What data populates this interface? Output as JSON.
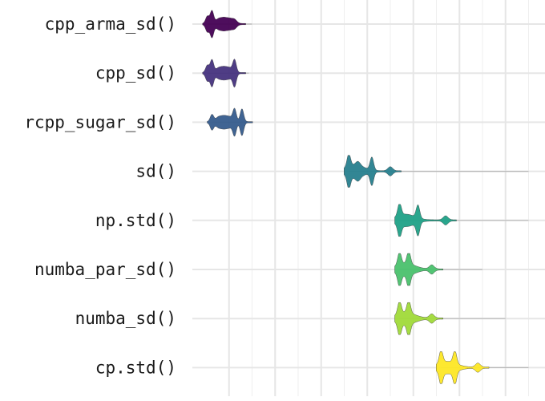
{
  "chart_data": {
    "type": "violin",
    "orientation": "horizontal",
    "title": "",
    "xlabel": "",
    "ylabel": "",
    "x_scale": "log",
    "grid": true,
    "legend": "none",
    "tick_labels_visible": false,
    "categories": [
      "cpp_arma_sd()",
      "cpp_sd()",
      "rcpp_sugar_sd()",
      "sd()",
      "np.std()",
      "numba_par_sd()",
      "numba_sd()",
      "cp.std()"
    ],
    "series": [
      {
        "category": "cpp_arma_sd()",
        "color": "#440154",
        "modes": [
          0.03,
          0.13,
          0.3,
          0.5
        ],
        "peak_positions": [
          0.03,
          0.13,
          0.26,
          0.35,
          0.43,
          0.52,
          0.62
        ],
        "tail_end": 1.0
      },
      {
        "category": "cpp_sd()",
        "color": "#46337e",
        "modes": [
          0.03,
          0.13,
          0.3,
          0.5,
          0.62
        ],
        "peak_positions": [
          0.03,
          0.13,
          0.26,
          0.35,
          0.43,
          0.52,
          0.62
        ],
        "tail_end": 0.93
      },
      {
        "category": "rcpp_sugar_sd()",
        "color": "#365c8d",
        "modes": [
          0.13,
          0.3,
          0.5,
          0.62,
          0.78
        ],
        "peak_positions": [
          0.13,
          0.26,
          0.35,
          0.43,
          0.52,
          0.62,
          0.78
        ],
        "tail_end": 0.97
      },
      {
        "category": "sd()",
        "color": "#277f8e",
        "modes": [
          3.1,
          3.6
        ],
        "peak_positions": [
          3.1,
          3.3,
          3.6,
          4.0
        ],
        "tail_end": 7.0
      },
      {
        "category": "np.std()",
        "color": "#1fa187",
        "modes": [
          4.2,
          4.6
        ],
        "peak_positions": [
          4.2,
          4.6,
          5.2
        ],
        "tail_end": 7.0
      },
      {
        "category": "numba_par_sd()",
        "color": "#4ac16d",
        "modes": [
          4.2,
          4.4
        ],
        "peak_positions": [
          4.2,
          4.4,
          4.9
        ],
        "tail_end": 6.0
      },
      {
        "category": "numba_sd()",
        "color": "#a0da39",
        "modes": [
          4.2,
          4.4
        ],
        "peak_positions": [
          4.2,
          4.4,
          4.9
        ],
        "tail_end": 6.5
      },
      {
        "category": "cp.std()",
        "color": "#fde725",
        "modes": [
          5.1,
          5.4
        ],
        "peak_positions": [
          5.1,
          5.4,
          5.9
        ],
        "tail_end": 7.0
      }
    ]
  }
}
